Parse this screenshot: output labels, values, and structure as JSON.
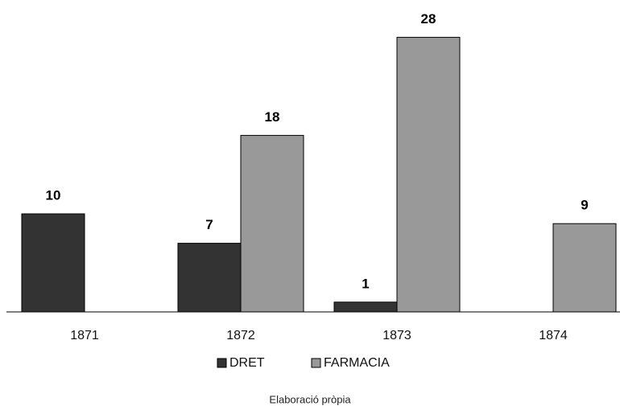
{
  "chart_data": {
    "type": "bar",
    "categories": [
      "1871",
      "1872",
      "1873",
      "1874"
    ],
    "series": [
      {
        "name": "DRET",
        "color": "#333333",
        "values": [
          10,
          7,
          1,
          null
        ]
      },
      {
        "name": "FARMACIA",
        "color": "#999999",
        "values": [
          null,
          18,
          28,
          9
        ]
      }
    ],
    "ylim": [
      0,
      30
    ],
    "source": "Elaboració pròpia"
  }
}
